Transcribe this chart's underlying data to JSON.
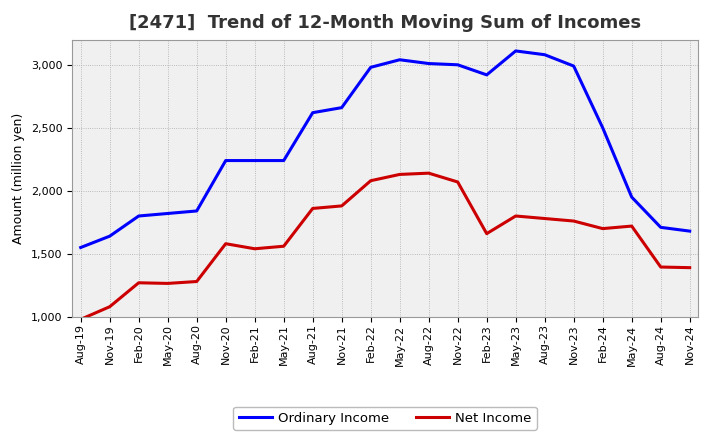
{
  "title": "[2471]  Trend of 12-Month Moving Sum of Incomes",
  "ylabel": "Amount (million yen)",
  "background_color": "#ffffff",
  "plot_background": "#f0f0f0",
  "ylim": [
    1000,
    3200
  ],
  "yticks": [
    1000,
    1500,
    2000,
    2500,
    3000
  ],
  "x_labels": [
    "Aug-19",
    "Nov-19",
    "Feb-20",
    "May-20",
    "Aug-20",
    "Nov-20",
    "Feb-21",
    "May-21",
    "Aug-21",
    "Nov-21",
    "Feb-22",
    "May-22",
    "Aug-22",
    "Nov-22",
    "Feb-23",
    "May-23",
    "Aug-23",
    "Nov-23",
    "Feb-24",
    "May-24",
    "Aug-24",
    "Nov-24"
  ],
  "ordinary_income": [
    1550,
    1640,
    1800,
    1820,
    1840,
    2240,
    2240,
    2240,
    2620,
    2660,
    2980,
    3040,
    3010,
    3000,
    2920,
    3110,
    3080,
    2990,
    2500,
    1950,
    1710,
    1680
  ],
  "net_income": [
    980,
    1080,
    1270,
    1265,
    1280,
    1580,
    1540,
    1560,
    1860,
    1880,
    2080,
    2130,
    2140,
    2070,
    1660,
    1800,
    1780,
    1760,
    1700,
    1720,
    1395,
    1390
  ],
  "ordinary_color": "#0000ff",
  "net_color": "#cc0000",
  "line_width": 2.2,
  "legend_labels": [
    "Ordinary Income",
    "Net Income"
  ],
  "title_fontsize": 13,
  "ylabel_fontsize": 9,
  "tick_fontsize": 8
}
